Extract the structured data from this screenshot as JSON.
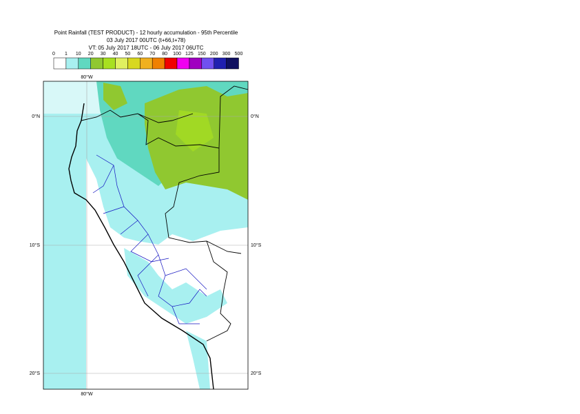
{
  "title": {
    "line1": "Point Rainfall (TEST PRODUCT) - 12 hourly accumulation - 95th Percentile",
    "line2": "03 July 2017 00UTC (t+66,t+78)",
    "line3": "VT: 05 July 2017 18UTC - 06 July 2017 06UTC"
  },
  "legend": {
    "thresholds": [
      "0",
      "1",
      "10",
      "20",
      "30",
      "40",
      "50",
      "60",
      "70",
      "80",
      "100",
      "125",
      "150",
      "200",
      "300",
      "500"
    ],
    "colors": [
      "#ffffff",
      "#a8f0f0",
      "#60d8c0",
      "#90c830",
      "#a8e020",
      "#e0f060",
      "#d8d820",
      "#f0b020",
      "#f08000",
      "#f00000",
      "#f000f0",
      "#a000c0",
      "#7050f0",
      "#2020b0",
      "#101060"
    ]
  },
  "map": {
    "lon_label": "80°W",
    "lat_labels": [
      "0°N",
      "10°S",
      "20°S"
    ]
  }
}
